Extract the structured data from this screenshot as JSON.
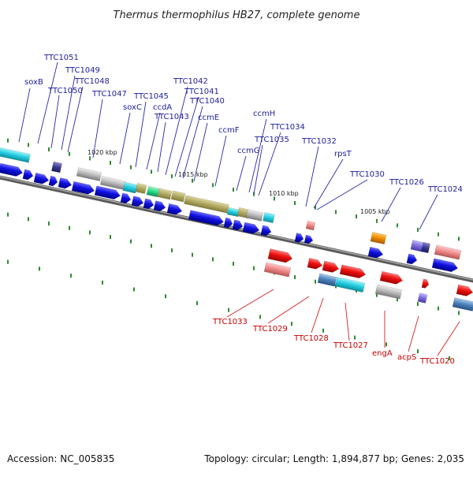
{
  "title": "Thermus thermophilus HB27, complete genome",
  "footer": {
    "accession": "Accession: NC_005835",
    "summary": "Topology: circular; Length: 1,894,877 bp; Genes: 2,035"
  },
  "kbp_markers": [
    "1020 kbp",
    "1015 kbp",
    "1010 kbp",
    "1005 kbp"
  ],
  "forward_genes": [
    "soxB",
    "TTC1051",
    "TTC1050",
    "TTC1049",
    "TTC1048",
    "TTC1047",
    "soxC",
    "TTC1045",
    "ccdA",
    "TTC1043",
    "TTC1042",
    "TTC1041",
    "TTC1040",
    "ccmE",
    "ccmF",
    "ccmH",
    "ccmG",
    "TTC1035",
    "TTC1034",
    "TTC1032",
    "rpsT",
    "TTC1030",
    "TTC1026",
    "TTC1024"
  ],
  "reverse_genes": [
    "TTC1033",
    "TTC1029",
    "TTC1028",
    "TTC1027",
    "engA",
    "acpS",
    "TTC1020"
  ],
  "colors": {
    "forward_label": "#1d1d9c",
    "reverse_label": "#c40000",
    "backbone": "#808080",
    "cds_blue": "#1010e0",
    "cds_red": "#ee1111",
    "feature_olive": "#b0a860",
    "feature_cyan": "#22ccdd",
    "feature_grey": "#b8b8b8",
    "feature_pink": "#ee8888",
    "feature_steel": "#4a80b8",
    "feature_orange": "#ee8800",
    "feature_purple": "#7a6adc",
    "tick_green": "#2e8b2e"
  }
}
